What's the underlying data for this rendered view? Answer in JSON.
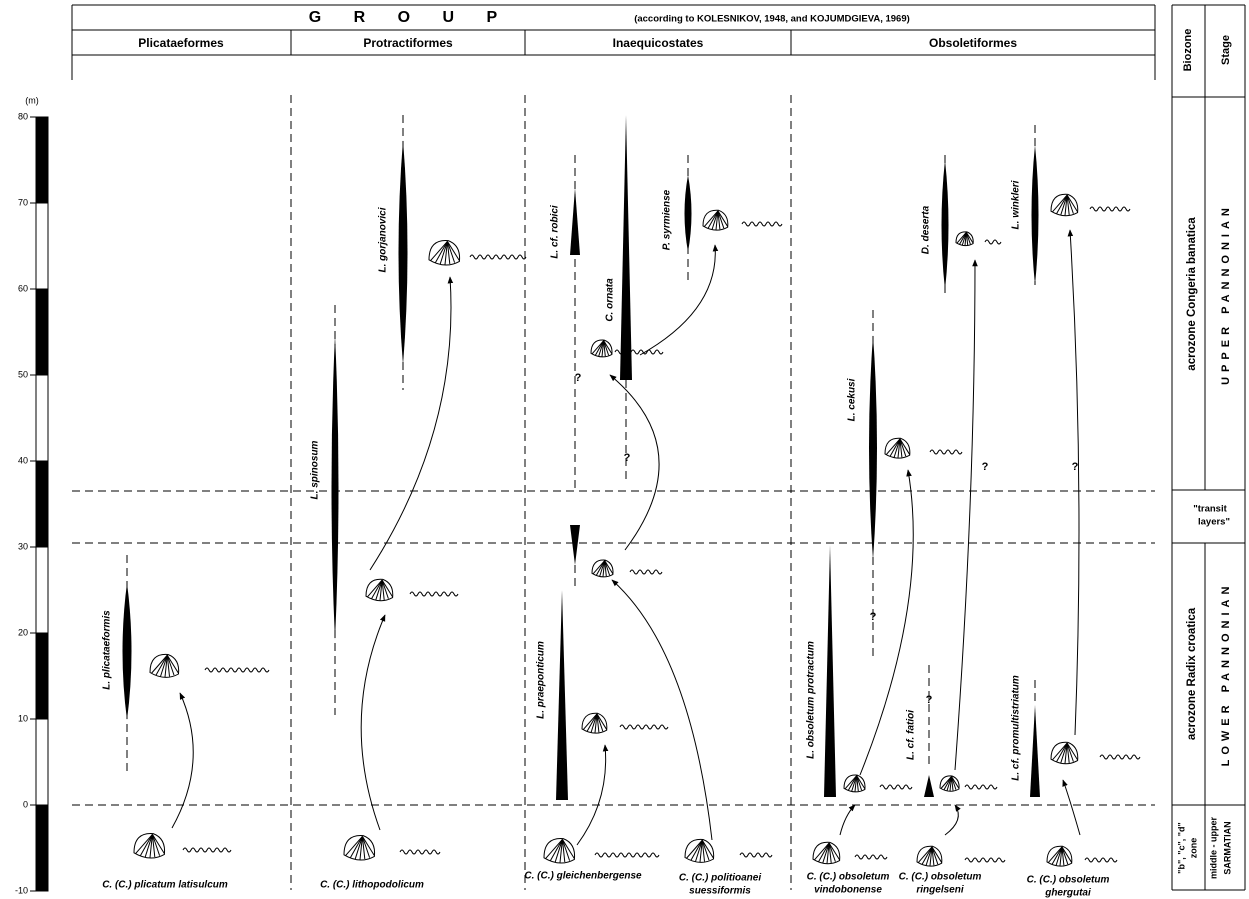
{
  "header": {
    "title": "G R O U P",
    "note": "(according to KOLESNIKOV, 1948, and KOJUMDGIEVA, 1969)"
  },
  "groups": [
    "Plicataeformes",
    "Protractiformes",
    "Inaequicostates",
    "Obsoletiformes"
  ],
  "side": {
    "biozone": "Biozone",
    "stage": "Stage"
  },
  "zones": [
    {
      "biozone": [
        "acrozone Congeria banatica"
      ],
      "stage": [
        "UPPER PANNONIAN"
      ]
    },
    {
      "label": [
        "\"transit",
        "layers\""
      ]
    },
    {
      "biozone": [
        "acrozone Radix croatica"
      ],
      "stage": [
        "LOWER PANNONIAN"
      ]
    },
    {
      "biozone": [
        "\"b\", \"c\", \"d\"",
        "zone"
      ],
      "stage": [
        "middle - upper",
        "SARMATIAN"
      ]
    }
  ],
  "scale": {
    "unit": "(m)",
    "ticks": [
      80,
      70,
      60,
      50,
      40,
      30,
      20,
      10,
      0,
      -10
    ]
  },
  "ranges": [
    "L. plicataeformis",
    "L. spinosum",
    "L. gorjanovici",
    "L. cf. robici",
    "C. ornata",
    "P. syrmiense",
    "L. praeponticum",
    "L. obsoletum protractum",
    "L. cekusi",
    "L. cf. fatioi",
    "D. deserta",
    "L. cf. promultistriatum",
    "L. winkleri"
  ],
  "ancestors": [
    [
      "C. (C.) plicatum latisulcum"
    ],
    [
      "C. (C.) lithopodolicum"
    ],
    [
      "C. (C.) gleichenbergense"
    ],
    [
      "C. (C.) politioanei",
      "suessiformis"
    ],
    [
      "C. (C.) obsoletum",
      "vindobonense"
    ],
    [
      "C. (C.) obsoletum",
      "ringelseni"
    ],
    [
      "C. (C.) obsoletum",
      "ghergutai"
    ]
  ],
  "uncertain": "?"
}
